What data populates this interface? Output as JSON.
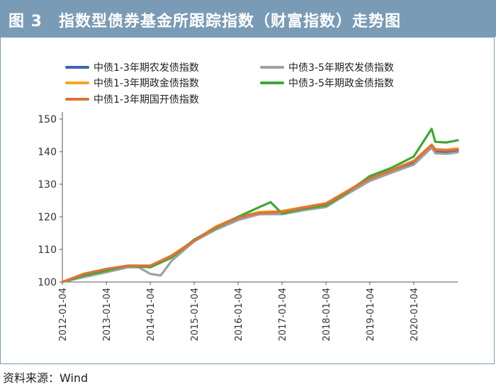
{
  "header": {
    "title": "图 3　指数型债券基金所跟踪指数（财富指数）走势图"
  },
  "source": "资料来源：Wind",
  "chart_data": {
    "type": "line",
    "ylim": [
      100,
      150
    ],
    "yticks": [
      100,
      110,
      120,
      130,
      140,
      150
    ],
    "xlim": [
      "2012-01-04",
      "2021-01-04"
    ],
    "xticks": [
      "2012-01-04",
      "2013-01-04",
      "2014-01-04",
      "2015-01-04",
      "2016-01-04",
      "2017-01-04",
      "2018-01-04",
      "2019-01-04",
      "2020-01-04"
    ],
    "grid": false,
    "legend_position": "top-left",
    "series": [
      {
        "name": "中债1-3年期农发债指数",
        "color": "#3a66b0",
        "x": [
          "2012-01-04",
          "2012-07-01",
          "2013-01-04",
          "2013-07-01",
          "2014-01-04",
          "2014-07-01",
          "2015-01-04",
          "2015-07-01",
          "2016-01-04",
          "2016-07-01",
          "2017-01-04",
          "2017-07-01",
          "2018-01-04",
          "2018-07-01",
          "2019-01-04",
          "2019-07-01",
          "2020-01-04",
          "2020-06-01",
          "2020-07-01",
          "2020-10-01",
          "2021-01-04"
        ],
        "y": [
          100,
          102.5,
          104,
          105,
          105,
          108,
          112.5,
          116.5,
          119.5,
          120.8,
          121.2,
          122.5,
          123.5,
          127.5,
          131.5,
          134,
          136.5,
          141.5,
          140,
          139.8,
          140.2
        ]
      },
      {
        "name": "中债3-5年期农发债指数",
        "color": "#a0a0a0",
        "x": [
          "2012-01-04",
          "2012-07-01",
          "2013-01-04",
          "2013-07-01",
          "2013-10-01",
          "2014-01-04",
          "2014-04-01",
          "2014-07-01",
          "2015-01-04",
          "2015-07-01",
          "2016-01-04",
          "2016-07-01",
          "2017-01-04",
          "2017-07-01",
          "2018-01-04",
          "2018-07-01",
          "2019-01-04",
          "2019-07-01",
          "2020-01-04",
          "2020-06-01",
          "2020-07-01",
          "2020-10-01",
          "2021-01-04"
        ],
        "y": [
          100,
          101.5,
          103,
          104.5,
          104.5,
          102.5,
          102,
          106.5,
          112.5,
          116,
          119,
          120.8,
          120.8,
          122,
          123,
          127,
          131,
          133.5,
          136,
          141.2,
          139.5,
          139.3,
          139.8
        ]
      },
      {
        "name": "中债1-3年期政金债指数",
        "color": "#f5a623",
        "x": [
          "2012-01-04",
          "2012-07-01",
          "2013-01-04",
          "2013-07-01",
          "2014-01-04",
          "2014-07-01",
          "2015-01-04",
          "2015-07-01",
          "2016-01-04",
          "2016-07-01",
          "2017-01-04",
          "2017-07-01",
          "2018-01-04",
          "2018-07-01",
          "2019-01-04",
          "2019-07-01",
          "2020-01-04",
          "2020-06-01",
          "2020-07-01",
          "2020-10-01",
          "2021-01-04"
        ],
        "y": [
          100,
          102.5,
          104,
          105,
          105,
          108.2,
          112.8,
          117,
          120,
          121.5,
          121.8,
          123,
          124.2,
          128,
          132,
          134.5,
          137.2,
          142.2,
          140.8,
          140.6,
          141
        ]
      },
      {
        "name": "中债3-5年期政金债指数",
        "color": "#3aaa35",
        "x": [
          "2012-01-04",
          "2012-07-01",
          "2013-01-04",
          "2013-07-01",
          "2014-01-04",
          "2014-07-01",
          "2015-01-04",
          "2015-07-01",
          "2016-01-04",
          "2016-07-01",
          "2016-10-01",
          "2017-01-04",
          "2017-07-01",
          "2018-01-04",
          "2018-07-01",
          "2019-01-04",
          "2019-07-01",
          "2020-01-04",
          "2020-06-01",
          "2020-07-01",
          "2020-10-01",
          "2021-01-04"
        ],
        "y": [
          100,
          102,
          103.5,
          105,
          104.5,
          107.5,
          113,
          116.5,
          120,
          123,
          124.5,
          121,
          122.5,
          123.5,
          127.5,
          132.5,
          135,
          138.5,
          147,
          143,
          142.8,
          143.5
        ]
      },
      {
        "name": "中债1-3年期国开债指数",
        "color": "#e0703a",
        "x": [
          "2012-01-04",
          "2012-07-01",
          "2013-01-04",
          "2013-07-01",
          "2014-01-04",
          "2014-07-01",
          "2015-01-04",
          "2015-07-01",
          "2016-01-04",
          "2016-07-01",
          "2017-01-04",
          "2017-07-01",
          "2018-01-04",
          "2018-07-01",
          "2019-01-04",
          "2019-07-01",
          "2020-01-04",
          "2020-06-01",
          "2020-07-01",
          "2020-10-01",
          "2021-01-04"
        ],
        "y": [
          100,
          102.5,
          104,
          105,
          105,
          108,
          112.6,
          116.8,
          119.8,
          121.2,
          121.5,
          122.8,
          124,
          127.8,
          131.8,
          134.2,
          137,
          142,
          140.5,
          140.3,
          140.7
        ]
      }
    ]
  }
}
